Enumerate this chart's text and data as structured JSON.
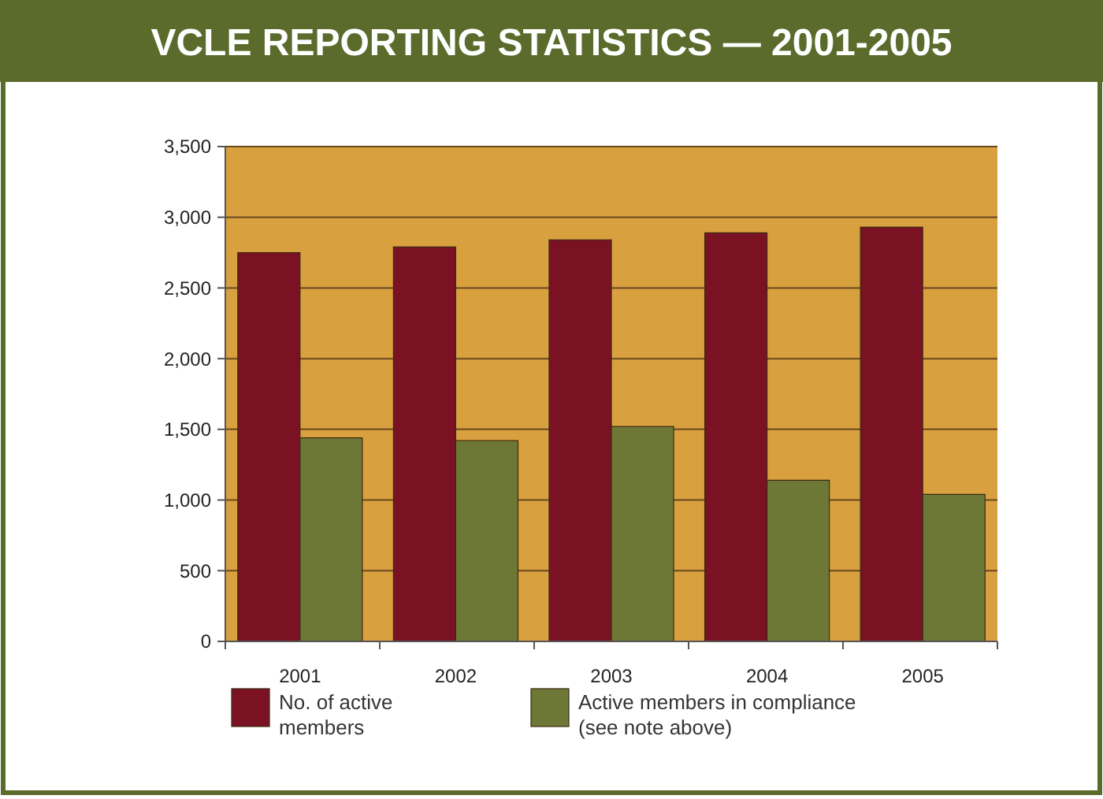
{
  "chart_data": {
    "type": "bar",
    "title": "VCLE REPORTING STATISTICS — 2001-2005",
    "categories": [
      "2001",
      "2002",
      "2003",
      "2004",
      "2005"
    ],
    "series": [
      {
        "name": "No. of active members",
        "color": "#7a1224",
        "values": [
          2750,
          2790,
          2840,
          2890,
          2930
        ]
      },
      {
        "name": "Active members in compliance (see note above)",
        "color": "#6e7836",
        "values": [
          1440,
          1420,
          1520,
          1140,
          1040
        ]
      }
    ],
    "ylim": [
      0,
      3500
    ],
    "yticks": [
      {
        "value": 0,
        "label": "0"
      },
      {
        "value": 500,
        "label": "500"
      },
      {
        "value": 1000,
        "label": "1,000"
      },
      {
        "value": 1500,
        "label": "1,500"
      },
      {
        "value": 2000,
        "label": "2,000"
      },
      {
        "value": 2500,
        "label": "2,500"
      },
      {
        "value": 3000,
        "label": "3,000"
      },
      {
        "value": 3500,
        "label": "3,500"
      }
    ],
    "grid": "y",
    "legend": "bottom"
  }
}
